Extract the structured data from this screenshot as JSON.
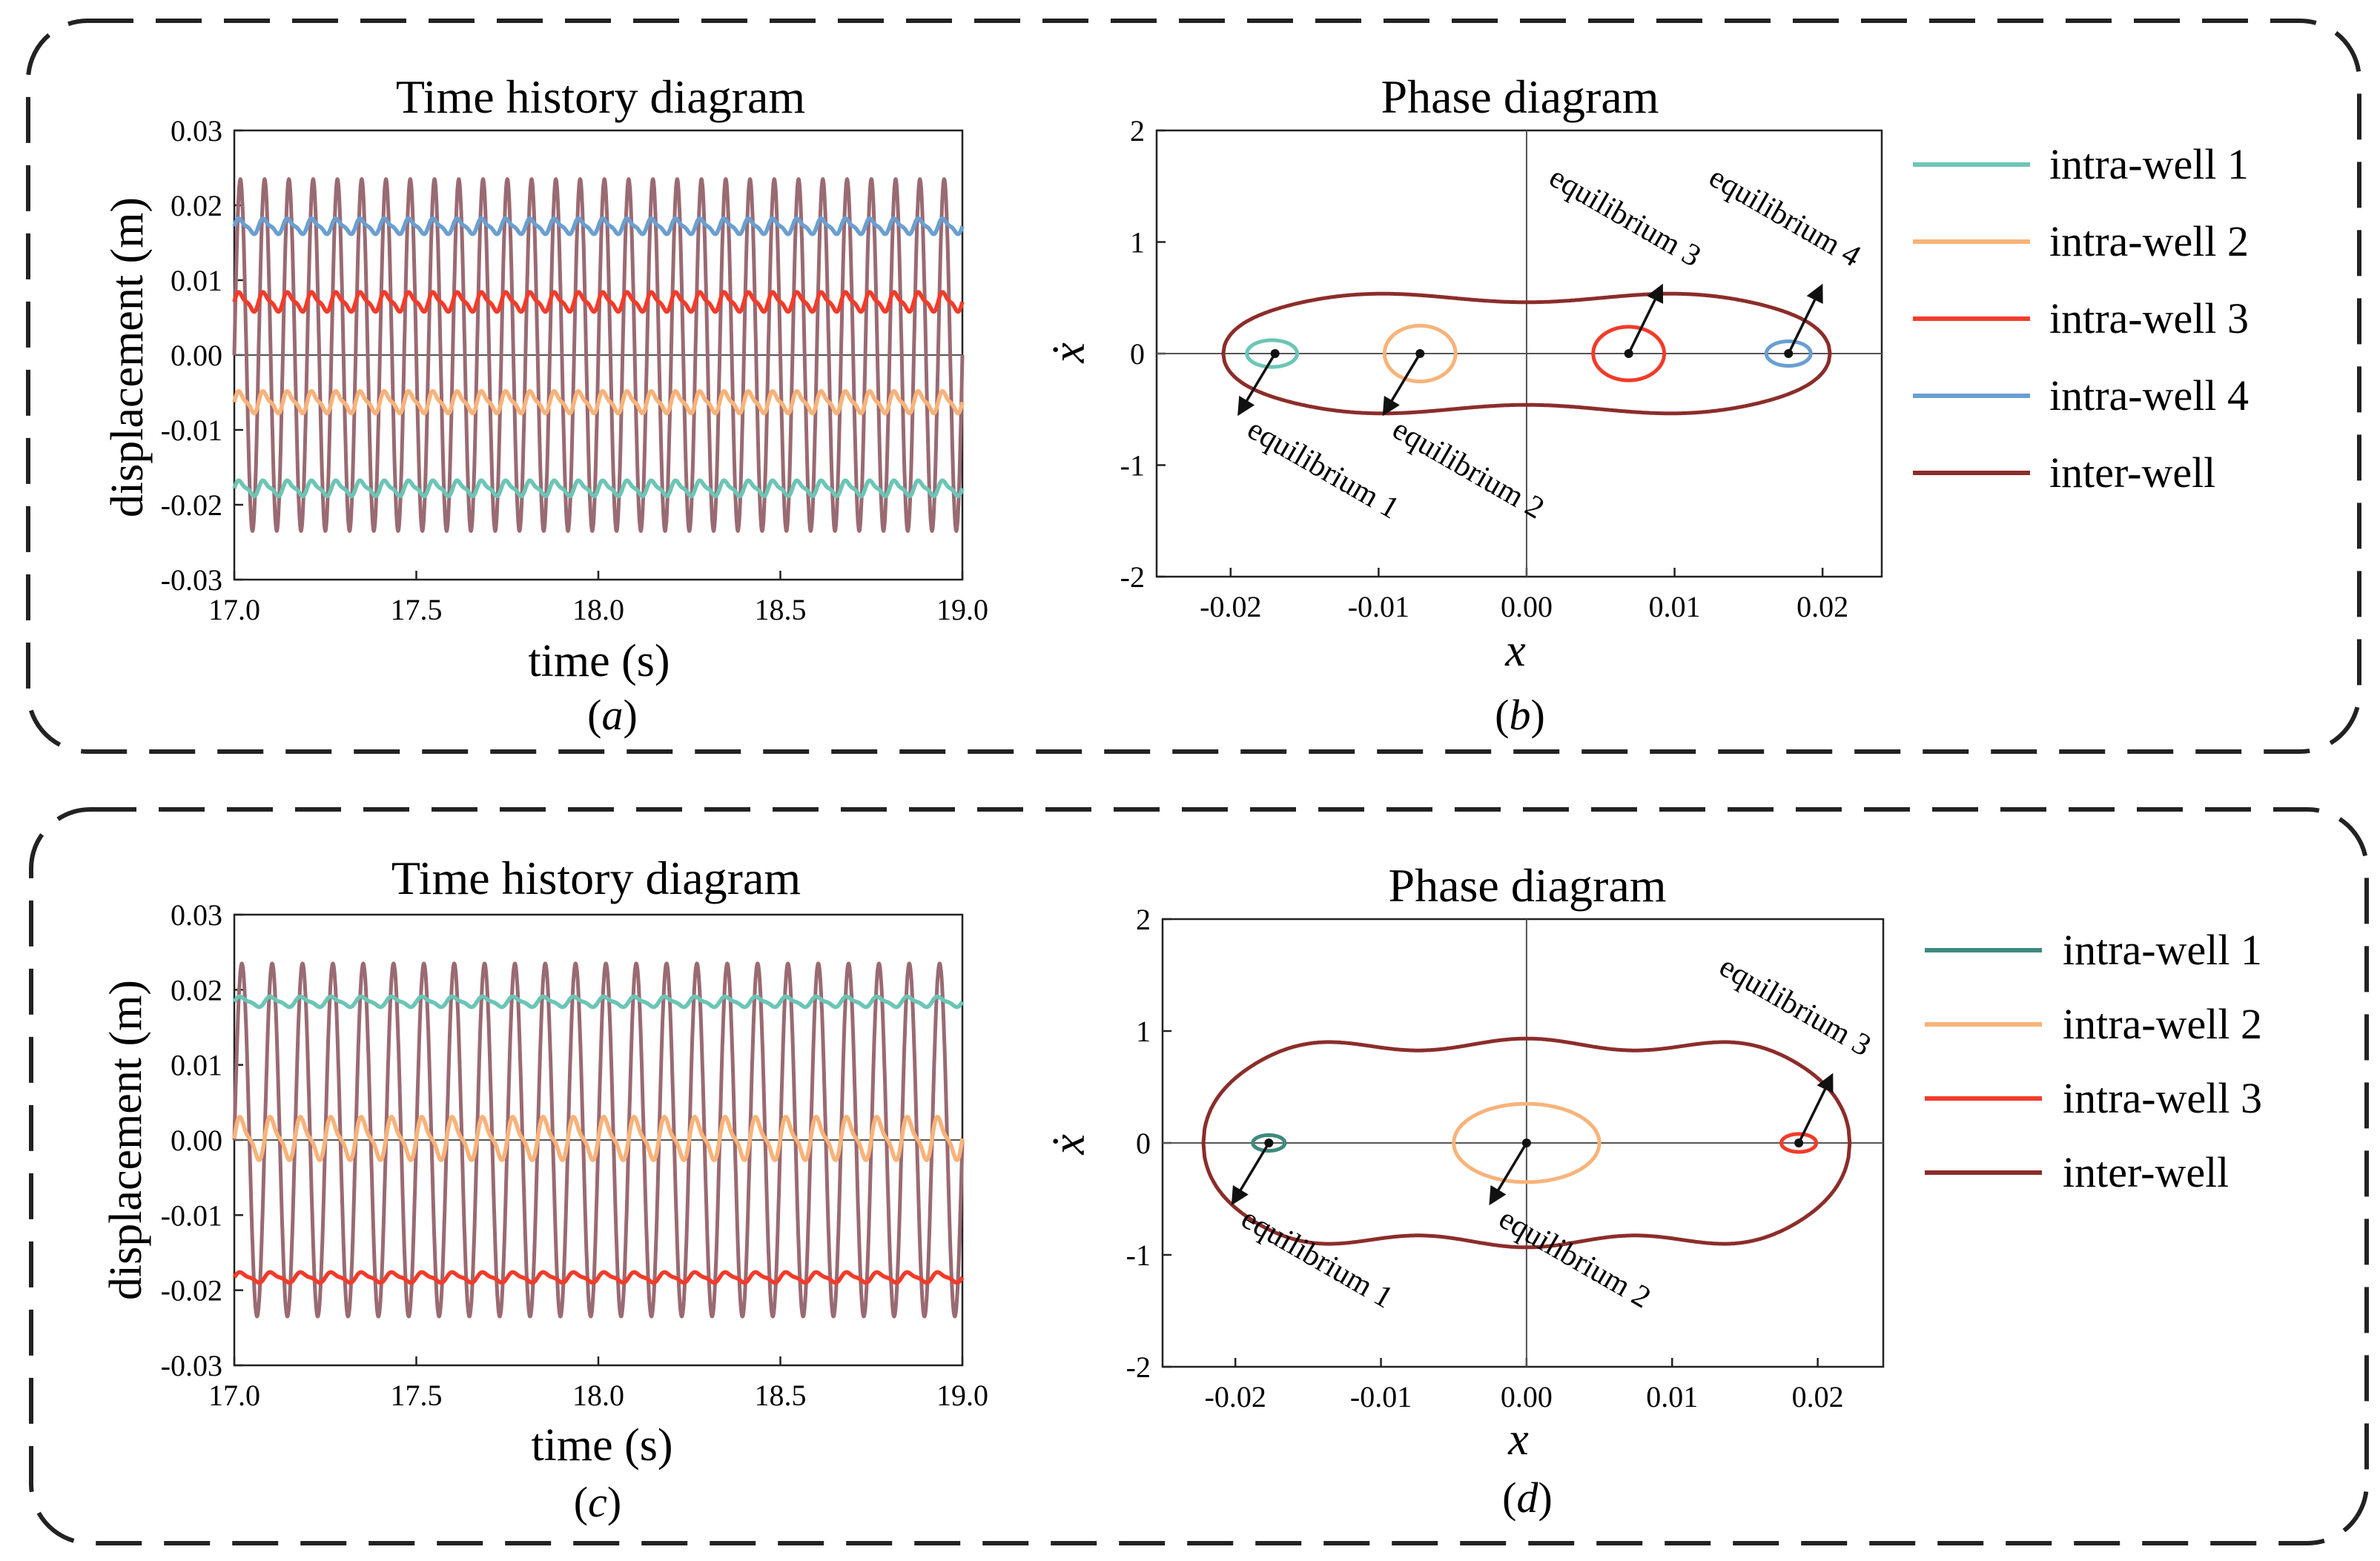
{
  "figure": {
    "panels": [
      {
        "id": "a",
        "caption": "(a)",
        "caption_letter": "a"
      },
      {
        "id": "b",
        "caption": "(b)",
        "caption_letter": "b"
      },
      {
        "id": "c",
        "caption": "(c)",
        "caption_letter": "c"
      },
      {
        "id": "d",
        "caption": "(d)",
        "caption_letter": "d"
      }
    ]
  },
  "chart_data": [
    {
      "id": "a",
      "type": "line",
      "title": "Time history diagram",
      "xlabel": "time (s)",
      "ylabel": "displacement (m)",
      "xlim": [
        17.0,
        19.0
      ],
      "ylim": [
        -0.03,
        0.03
      ],
      "xticks": [
        "17.0",
        "17.5",
        "18.0",
        "18.5",
        "19.0"
      ],
      "yticks": [
        "0.03",
        "0.02",
        "0.01",
        "0.00",
        "-0.01",
        "-0.02",
        "-0.03"
      ],
      "series": [
        {
          "name": "inter-well",
          "color": "#9a6a72",
          "mean": 0.0,
          "amplitude": 0.0235,
          "frequency_hz": 15
        },
        {
          "name": "intra-well 1",
          "color": "#6cc5b5",
          "mean": -0.0178,
          "amplitude": 0.0012,
          "frequency_hz": 15
        },
        {
          "name": "intra-well 2",
          "color": "#f8b37a",
          "mean": -0.0063,
          "amplitude": 0.0017,
          "frequency_hz": 15
        },
        {
          "name": "intra-well 3",
          "color": "#f23b2a",
          "mean": 0.0071,
          "amplitude": 0.0015,
          "frequency_hz": 15
        },
        {
          "name": "intra-well 4",
          "color": "#6a9fd0",
          "mean": 0.0172,
          "amplitude": 0.0012,
          "frequency_hz": 15
        }
      ]
    },
    {
      "id": "b",
      "type": "line",
      "title": "Phase diagram",
      "xlabel": "x",
      "ylabel": "ẋ",
      "xlim": [
        -0.025,
        0.024
      ],
      "ylim": [
        -2,
        2
      ],
      "xticks": [
        "-0.02",
        "-0.01",
        "0.00",
        "0.01",
        "0.02"
      ],
      "yticks": [
        "2",
        "1",
        "0",
        "-1",
        "-2"
      ],
      "legend": [
        "intra-well 1",
        "intra-well 2",
        "intra-well 3",
        "intra-well 4",
        "inter-well"
      ],
      "series": [
        {
          "name": "intra-well 1",
          "color": "#6cc5b5",
          "center": [
            -0.0172,
            0.0
          ],
          "rx": 0.0017,
          "ry": 0.12
        },
        {
          "name": "intra-well 2",
          "color": "#f8b37a",
          "center": [
            -0.0072,
            0.0
          ],
          "rx": 0.0024,
          "ry": 0.25
        },
        {
          "name": "intra-well 3",
          "color": "#f23b2a",
          "center": [
            0.0069,
            0.0
          ],
          "rx": 0.0024,
          "ry": 0.24
        },
        {
          "name": "intra-well 4",
          "color": "#6a9fd0",
          "center": [
            0.0177,
            0.0
          ],
          "rx": 0.0015,
          "ry": 0.11
        },
        {
          "name": "inter-well",
          "color": "#8b2d2a",
          "xmax": 0.0205,
          "ydepth": 0.5,
          "ybump": 0.08,
          "bumps": 2
        }
      ],
      "annotations": [
        {
          "text": "equilibrium 1",
          "point": [
            -0.017,
            0.0
          ]
        },
        {
          "text": "equilibrium 2",
          "point": [
            -0.0072,
            0.0
          ]
        },
        {
          "text": "equilibrium 3",
          "point": [
            0.0069,
            0.0
          ]
        },
        {
          "text": "equilibrium 4",
          "point": [
            0.0177,
            0.0
          ]
        }
      ]
    },
    {
      "id": "c",
      "type": "line",
      "title": "Time history diagram",
      "xlabel": "time (s)",
      "ylabel": "displacement (m)",
      "xlim": [
        17.0,
        19.0
      ],
      "ylim": [
        -0.03,
        0.03
      ],
      "xticks": [
        "17.0",
        "17.5",
        "18.0",
        "18.5",
        "19.0"
      ],
      "yticks": [
        "0.03",
        "0.02",
        "0.01",
        "0.00",
        "-0.01",
        "-0.02",
        "-0.03"
      ],
      "series": [
        {
          "name": "inter-well",
          "color": "#9a6a72",
          "mean": 0.0,
          "amplitude": 0.0235,
          "frequency_hz": 12
        },
        {
          "name": "intra-well 1",
          "color": "#6cc5b5",
          "mean": 0.0184,
          "amplitude": 0.0008,
          "frequency_hz": 12
        },
        {
          "name": "intra-well 2",
          "color": "#f8b37a",
          "mean": 0.0002,
          "amplitude": 0.0033,
          "frequency_hz": 12
        },
        {
          "name": "intra-well 3",
          "color": "#f23b2a",
          "mean": -0.0183,
          "amplitude": 0.0008,
          "frequency_hz": 12
        }
      ]
    },
    {
      "id": "d",
      "type": "line",
      "title": "Phase diagram",
      "xlabel": "x",
      "ylabel": "ẋ",
      "xlim": [
        -0.025,
        0.0245
      ],
      "ylim": [
        -2,
        2
      ],
      "xticks": [
        "-0.02",
        "-0.01",
        "0.00",
        "0.01",
        "0.02"
      ],
      "yticks": [
        "2",
        "1",
        "0",
        "-1",
        "-2"
      ],
      "legend": [
        "intra-well 1",
        "intra-well 2",
        "intra-well 3",
        "inter-well"
      ],
      "series": [
        {
          "name": "intra-well 1",
          "color": "#3e8a7e",
          "center": [
            -0.0177,
            0.0
          ],
          "rx": 0.0011,
          "ry": 0.07
        },
        {
          "name": "intra-well 2",
          "color": "#f8b37a",
          "center": [
            0.0,
            0.0
          ],
          "rx": 0.005,
          "ry": 0.35
        },
        {
          "name": "intra-well 3",
          "color": "#f23b2a",
          "center": [
            0.0187,
            0.0
          ],
          "rx": 0.0012,
          "ry": 0.08
        },
        {
          "name": "inter-well",
          "color": "#8b2d2a",
          "xmax": 0.0222,
          "ydepth": 0.88,
          "ybump": 0.06,
          "bumps": 3
        }
      ],
      "annotations": [
        {
          "text": "equilibrium 1",
          "point": [
            -0.0177,
            0.0
          ]
        },
        {
          "text": "equilibrium 2",
          "point": [
            0.0,
            0.0
          ]
        },
        {
          "text": "equilibrium 3",
          "point": [
            0.0187,
            0.0
          ]
        }
      ]
    }
  ]
}
